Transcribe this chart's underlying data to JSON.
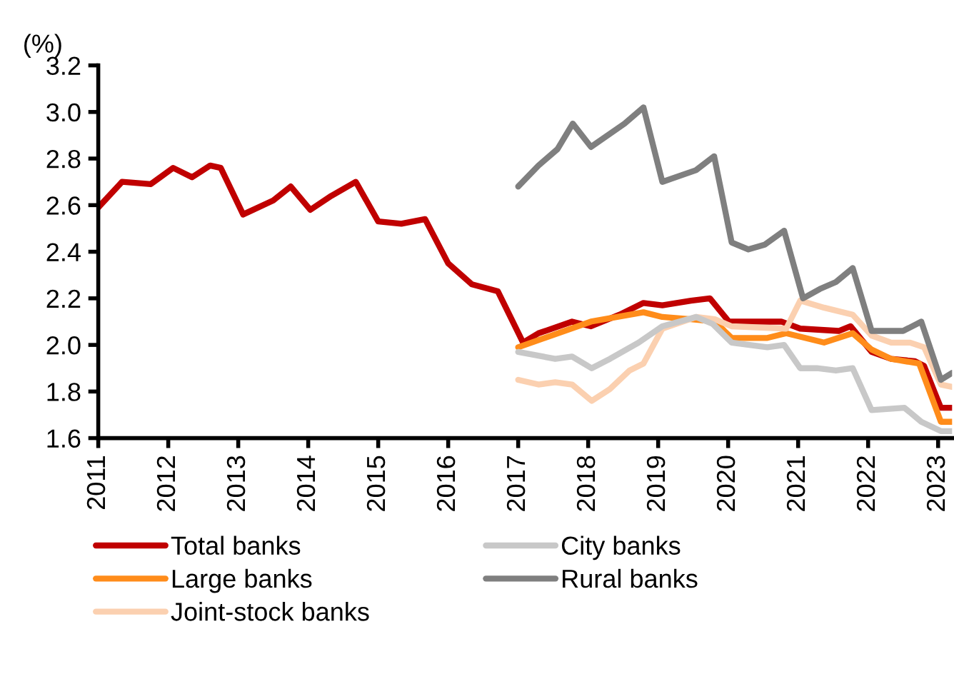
{
  "chart_data": {
    "type": "line",
    "ylabel": "(%)",
    "xlim": [
      2011,
      2023.2
    ],
    "xticks": [
      2011,
      2012,
      2013,
      2014,
      2015,
      2016,
      2017,
      2018,
      2019,
      2020,
      2021,
      2022,
      2023
    ],
    "ylim": [
      1.6,
      3.2
    ],
    "yticks": [
      {
        "value": 1.6,
        "label": "1.6"
      },
      {
        "value": 1.8,
        "label": "1.8"
      },
      {
        "value": 2.0,
        "label": "2.0"
      },
      {
        "value": 2.2,
        "label": "2.2"
      },
      {
        "value": 2.4,
        "label": "2.4"
      },
      {
        "value": 2.6,
        "label": "2.6"
      },
      {
        "value": 2.8,
        "label": "2.8"
      },
      {
        "value": 3.0,
        "label": "3.0"
      },
      {
        "value": 3.2,
        "label": "3.2"
      }
    ],
    "grid": false,
    "legend": "bottom",
    "marker": "none",
    "line_style": "solid",
    "series": [
      {
        "name": "Total banks",
        "color": "#c00000",
        "x": [
          2011.0,
          2011.34,
          2011.75,
          2012.07,
          2012.34,
          2012.6,
          2012.75,
          2013.07,
          2013.5,
          2013.75,
          2014.03,
          2014.33,
          2014.68,
          2015.0,
          2015.33,
          2015.67,
          2016.0,
          2016.34,
          2016.71,
          2017.07,
          2017.29,
          2017.77,
          2018.04,
          2018.45,
          2018.79,
          2019.06,
          2019.47,
          2019.74,
          2020.01,
          2020.76,
          2021.03,
          2021.58,
          2021.75,
          2022.05,
          2022.33,
          2022.67,
          2022.8,
          2023.04,
          2023.2
        ],
        "values": [
          2.59,
          2.7,
          2.69,
          2.76,
          2.72,
          2.77,
          2.76,
          2.56,
          2.62,
          2.68,
          2.58,
          2.64,
          2.7,
          2.53,
          2.52,
          2.54,
          2.35,
          2.26,
          2.23,
          2.01,
          2.05,
          2.1,
          2.08,
          2.13,
          2.18,
          2.17,
          2.19,
          2.2,
          2.1,
          2.1,
          2.07,
          2.06,
          2.08,
          1.97,
          1.94,
          1.93,
          1.91,
          1.73,
          1.73
        ]
      },
      {
        "name": "Large banks",
        "color": "#ff8c1a",
        "x": [
          2017.0,
          2018.04,
          2018.79,
          2019.06,
          2019.47,
          2019.81,
          2020.05,
          2020.56,
          2020.83,
          2021.37,
          2021.78,
          2022.05,
          2022.33,
          2022.73,
          2023.04,
          2023.2
        ],
        "values": [
          1.99,
          2.1,
          2.14,
          2.12,
          2.11,
          2.1,
          2.03,
          2.03,
          2.05,
          2.01,
          2.05,
          1.98,
          1.94,
          1.92,
          1.67,
          1.67
        ]
      },
      {
        "name": "Joint-stock banks",
        "color": "#fbd0b0",
        "x": [
          2017.0,
          2017.29,
          2017.53,
          2017.77,
          2018.05,
          2018.31,
          2018.59,
          2018.79,
          2019.06,
          2019.54,
          2019.81,
          2020.05,
          2020.83,
          2021.03,
          2021.37,
          2021.78,
          2022.05,
          2022.33,
          2022.6,
          2022.8,
          2023.04,
          2023.2
        ],
        "values": [
          1.85,
          1.83,
          1.84,
          1.83,
          1.76,
          1.81,
          1.89,
          1.92,
          2.07,
          2.12,
          2.11,
          2.08,
          2.07,
          2.19,
          2.16,
          2.13,
          2.04,
          2.01,
          2.01,
          1.99,
          1.83,
          1.82
        ]
      },
      {
        "name": "City banks",
        "color": "#c8c8c8",
        "x": [
          2017.0,
          2017.53,
          2017.77,
          2018.05,
          2018.31,
          2018.72,
          2019.06,
          2019.54,
          2019.78,
          2020.05,
          2020.56,
          2020.8,
          2021.03,
          2021.27,
          2021.54,
          2021.78,
          2022.05,
          2022.52,
          2022.76,
          2023.04,
          2023.2
        ],
        "values": [
          1.97,
          1.94,
          1.95,
          1.9,
          1.94,
          2.01,
          2.08,
          2.12,
          2.09,
          2.01,
          1.99,
          2.0,
          1.9,
          1.9,
          1.89,
          1.9,
          1.72,
          1.73,
          1.67,
          1.63,
          1.63
        ]
      },
      {
        "name": "Rural banks",
        "color": "#7f7f7f",
        "x": [
          2017.0,
          2017.29,
          2017.56,
          2017.78,
          2018.04,
          2018.52,
          2018.79,
          2019.06,
          2019.54,
          2019.8,
          2020.05,
          2020.29,
          2020.52,
          2020.8,
          2021.07,
          2021.31,
          2021.54,
          2021.78,
          2022.05,
          2022.5,
          2022.76,
          2023.04,
          2023.2
        ],
        "values": [
          2.68,
          2.77,
          2.84,
          2.95,
          2.85,
          2.95,
          3.02,
          2.7,
          2.75,
          2.81,
          2.44,
          2.41,
          2.43,
          2.49,
          2.2,
          2.24,
          2.27,
          2.33,
          2.06,
          2.06,
          2.1,
          1.85,
          1.88
        ]
      }
    ]
  }
}
